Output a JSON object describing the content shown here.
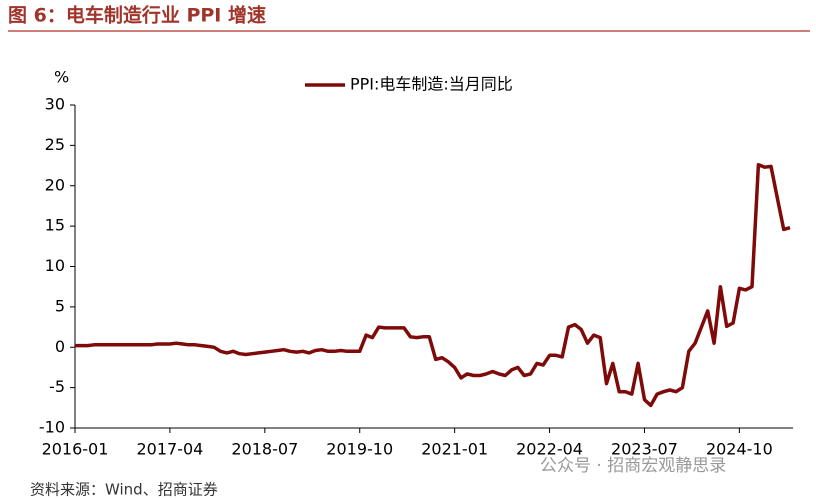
{
  "chart_data": {
    "type": "line",
    "title": "图 6：电车制造行业 PPI 增速",
    "y_unit": "%",
    "source": "资料来源：Wind、招商证券",
    "watermark": "公众号 · 招商宏观静思录",
    "categories": [
      "2016-01",
      "2016-02",
      "2016-03",
      "2016-04",
      "2016-05",
      "2016-06",
      "2016-07",
      "2016-08",
      "2016-09",
      "2016-10",
      "2016-11",
      "2016-12",
      "2017-01",
      "2017-02",
      "2017-03",
      "2017-04",
      "2017-05",
      "2017-06",
      "2017-07",
      "2017-08",
      "2017-09",
      "2017-10",
      "2017-11",
      "2017-12",
      "2018-01",
      "2018-02",
      "2018-03",
      "2018-04",
      "2018-05",
      "2018-06",
      "2018-07",
      "2018-08",
      "2018-09",
      "2018-10",
      "2018-11",
      "2018-12",
      "2019-01",
      "2019-02",
      "2019-03",
      "2019-04",
      "2019-05",
      "2019-06",
      "2019-07",
      "2019-08",
      "2019-09",
      "2019-10",
      "2019-11",
      "2019-12",
      "2020-01",
      "2020-02",
      "2020-03",
      "2020-04",
      "2020-05",
      "2020-06",
      "2020-07",
      "2020-08",
      "2020-09",
      "2020-10",
      "2020-11",
      "2020-12",
      "2021-01",
      "2021-02",
      "2021-03",
      "2021-04",
      "2021-05",
      "2021-06",
      "2021-07",
      "2021-08",
      "2021-09",
      "2021-10",
      "2021-11",
      "2021-12",
      "2022-01",
      "2022-02",
      "2022-03",
      "2022-04",
      "2022-05",
      "2022-06",
      "2022-07",
      "2022-08",
      "2022-09",
      "2022-10",
      "2022-11",
      "2022-12",
      "2023-01",
      "2023-02",
      "2023-03",
      "2023-04",
      "2023-05",
      "2023-06",
      "2023-07",
      "2023-08",
      "2023-09",
      "2023-10",
      "2023-11",
      "2023-12",
      "2024-01",
      "2024-02",
      "2024-03",
      "2024-04",
      "2024-05",
      "2024-06",
      "2024-07",
      "2024-08",
      "2024-09",
      "2024-10",
      "2024-11",
      "2024-12",
      "2025-01",
      "2025-02",
      "2025-03",
      "2025-04",
      "2025-05",
      "2025-06"
    ],
    "xticks": [
      "2016-01",
      "2017-04",
      "2018-07",
      "2019-10",
      "2021-01",
      "2022-04",
      "2023-07",
      "2024-10"
    ],
    "series": [
      {
        "name": "PPI:电车制造:当月同比",
        "color": "#7f0a0a",
        "values": [
          0.2,
          0.2,
          0.2,
          0.3,
          0.3,
          0.3,
          0.3,
          0.3,
          0.3,
          0.3,
          0.3,
          0.3,
          0.3,
          0.4,
          0.4,
          0.4,
          0.5,
          0.4,
          0.3,
          0.3,
          0.2,
          0.1,
          0,
          -0.5,
          -0.7,
          -0.5,
          -0.8,
          -0.9,
          -0.8,
          -0.7,
          -0.6,
          -0.5,
          -0.4,
          -0.3,
          -0.5,
          -0.6,
          -0.5,
          -0.7,
          -0.4,
          -0.3,
          -0.5,
          -0.5,
          -0.4,
          -0.5,
          -0.5,
          -0.5,
          1.5,
          1.2,
          2.5,
          2.4,
          2.4,
          2.4,
          2.4,
          1.3,
          1.2,
          1.3,
          1.3,
          -1.5,
          -1.3,
          -1.8,
          -2.5,
          -3.8,
          -3.3,
          -3.5,
          -3.5,
          -3.3,
          -3,
          -3.3,
          -3.5,
          -2.8,
          -2.5,
          -3.5,
          -3.3,
          -2,
          -2.2,
          -1,
          -1,
          -1.2,
          2.5,
          2.8,
          2.2,
          0.5,
          1.5,
          1.2,
          -4.5,
          -2,
          -5.5,
          -5.5,
          -5.8,
          -2,
          -6.5,
          -7.2,
          -5.8,
          -5.5,
          -5.3,
          -5.5,
          -5,
          -0.5,
          0.5,
          2.5,
          4.5,
          0.5,
          7.5,
          2.6,
          3,
          7.3,
          7.1,
          7.5,
          22.6,
          22.3,
          22.4,
          18.5,
          14.6,
          14.8
        ]
      }
    ],
    "ylim": [
      -10,
      30
    ],
    "yticks": [
      -10,
      -5,
      0,
      5,
      10,
      15,
      20,
      25,
      30
    ]
  }
}
